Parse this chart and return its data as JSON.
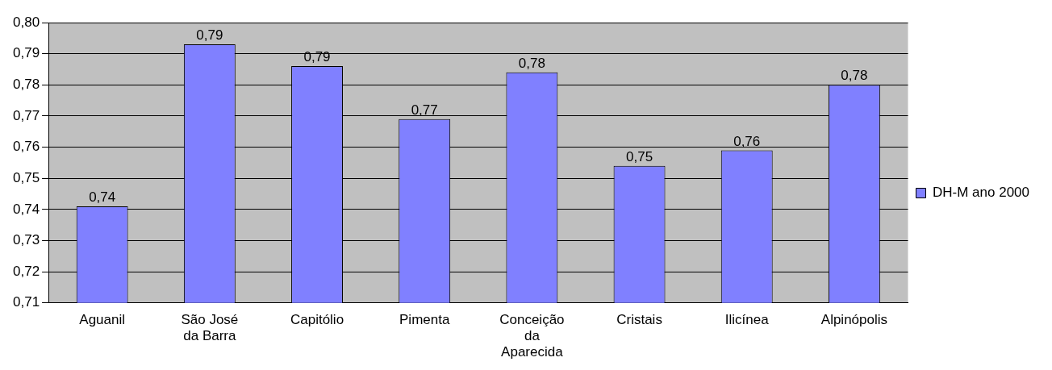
{
  "chart_data": {
    "type": "bar",
    "categories": [
      "Aguanil",
      "São José da Barra",
      "Capitólio",
      "Pimenta",
      "Conceição da Aparecida",
      "Cristais",
      "Ilicínea",
      "Alpinópolis"
    ],
    "series": [
      {
        "name": "DH-M ano 2000",
        "color": "#8080ff",
        "values": [
          0.741,
          0.793,
          0.786,
          0.769,
          0.784,
          0.754,
          0.759,
          0.78
        ],
        "value_labels": [
          "0,74",
          "0,79",
          "0,79",
          "0,77",
          "0,78",
          "0,75",
          "0,76",
          "0,78"
        ]
      }
    ],
    "ylim": [
      0.71,
      0.8
    ],
    "yticks": [
      {
        "value": 0.71,
        "label": "0,71"
      },
      {
        "value": 0.72,
        "label": "0,72"
      },
      {
        "value": 0.73,
        "label": "0,73"
      },
      {
        "value": 0.74,
        "label": "0,74"
      },
      {
        "value": 0.75,
        "label": "0,75"
      },
      {
        "value": 0.76,
        "label": "0,76"
      },
      {
        "value": 0.77,
        "label": "0,77"
      },
      {
        "value": 0.78,
        "label": "0,78"
      },
      {
        "value": 0.79,
        "label": "0,79"
      },
      {
        "value": 0.8,
        "label": "0,80"
      }
    ],
    "grid": "y",
    "legend": "right"
  }
}
